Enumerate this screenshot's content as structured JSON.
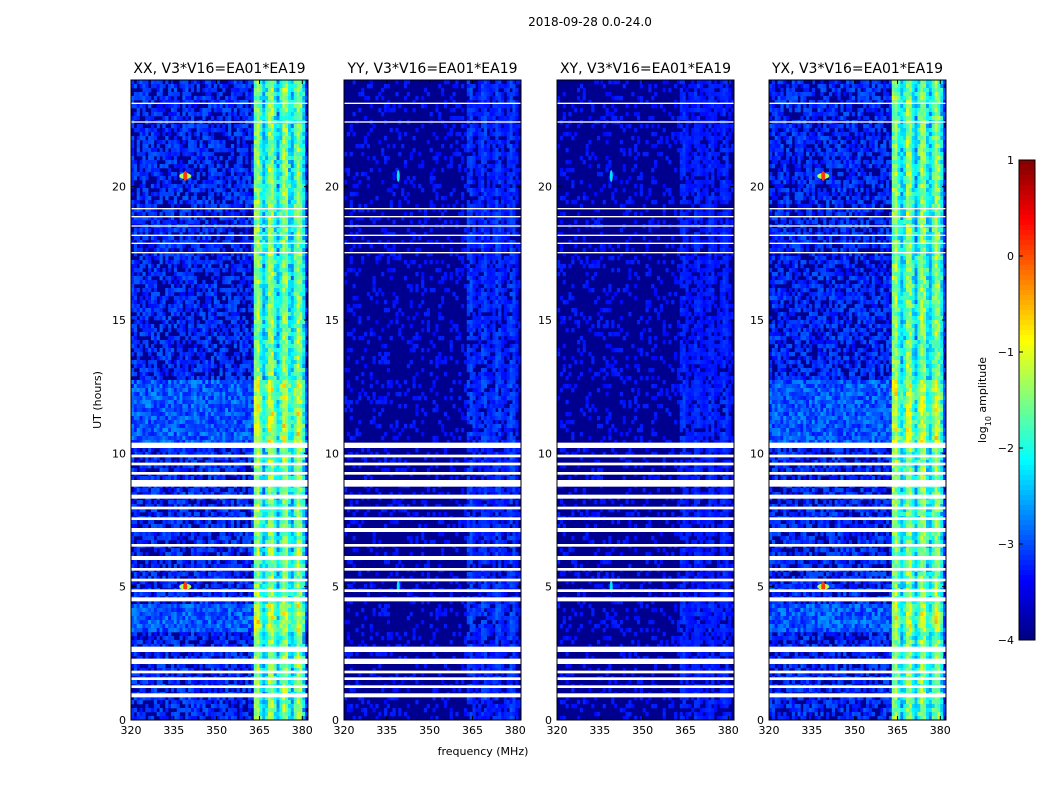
{
  "chart_data": {
    "type": "heatmap",
    "suptitle": "2018-09-28 0.0-24.0",
    "xlabel": "frequency (MHz)",
    "ylabel": "UT (hours)",
    "xlim": [
      320,
      382
    ],
    "ylim": [
      0,
      24
    ],
    "xticks": [
      320,
      335,
      350,
      365,
      380
    ],
    "yticks": [
      0,
      5,
      10,
      15,
      20
    ],
    "colorbar": {
      "label": "log",
      "label_sub": "10",
      "label_rest": " amplitude",
      "range": [
        -4,
        1
      ],
      "ticks": [
        1,
        0,
        -1,
        -2,
        -3,
        -4
      ],
      "tick_labels": [
        "1",
        "0",
        "−1",
        "−2",
        "−3",
        "−4"
      ],
      "colormap": "jet"
    },
    "panels": [
      {
        "title": "XX, V3*V16=EA01*EA19",
        "pol": "XX",
        "baseline": "V3*V16=EA01*EA19",
        "level": 1.0
      },
      {
        "title": "YY, V3*V16=EA01*EA19",
        "pol": "YY",
        "baseline": "V3*V16=EA01*EA19",
        "level": 0.25
      },
      {
        "title": "XY, V3*V16=EA01*EA19",
        "pol": "XY",
        "baseline": "V3*V16=EA01*EA19",
        "level": 0.2
      },
      {
        "title": "YX, V3*V16=EA01*EA19",
        "pol": "YX",
        "baseline": "V3*V16=EA01*EA19",
        "level": 1.0
      }
    ],
    "features": {
      "rfi_band_mhz": [
        363,
        381
      ],
      "rfi_spots": [
        {
          "freq_mhz": 339,
          "ut_hours": 20.4
        },
        {
          "freq_mhz": 339,
          "ut_hours": 5.0
        }
      ],
      "flagged_ut_hours_ranges": [
        [
          0.85,
          1.0
        ],
        [
          1.2,
          1.3
        ],
        [
          1.5,
          1.6
        ],
        [
          1.75,
          1.85
        ],
        [
          2.1,
          2.3
        ],
        [
          2.55,
          2.75
        ],
        [
          4.45,
          4.6
        ],
        [
          4.8,
          4.9
        ],
        [
          5.2,
          5.3
        ],
        [
          5.6,
          5.7
        ],
        [
          6.0,
          6.15
        ],
        [
          6.5,
          6.6
        ],
        [
          7.05,
          7.2
        ],
        [
          7.5,
          7.6
        ],
        [
          7.9,
          8.0
        ],
        [
          8.3,
          8.45
        ],
        [
          8.75,
          9.0
        ],
        [
          9.2,
          9.3
        ],
        [
          9.55,
          9.65
        ],
        [
          9.85,
          9.95
        ],
        [
          10.2,
          10.4
        ],
        [
          17.5,
          17.55
        ],
        [
          17.85,
          17.9
        ],
        [
          18.15,
          18.2
        ],
        [
          18.5,
          18.55
        ],
        [
          18.85,
          18.9
        ],
        [
          19.15,
          19.2
        ],
        [
          22.4,
          22.45
        ],
        [
          23.1,
          23.15
        ]
      ]
    }
  }
}
